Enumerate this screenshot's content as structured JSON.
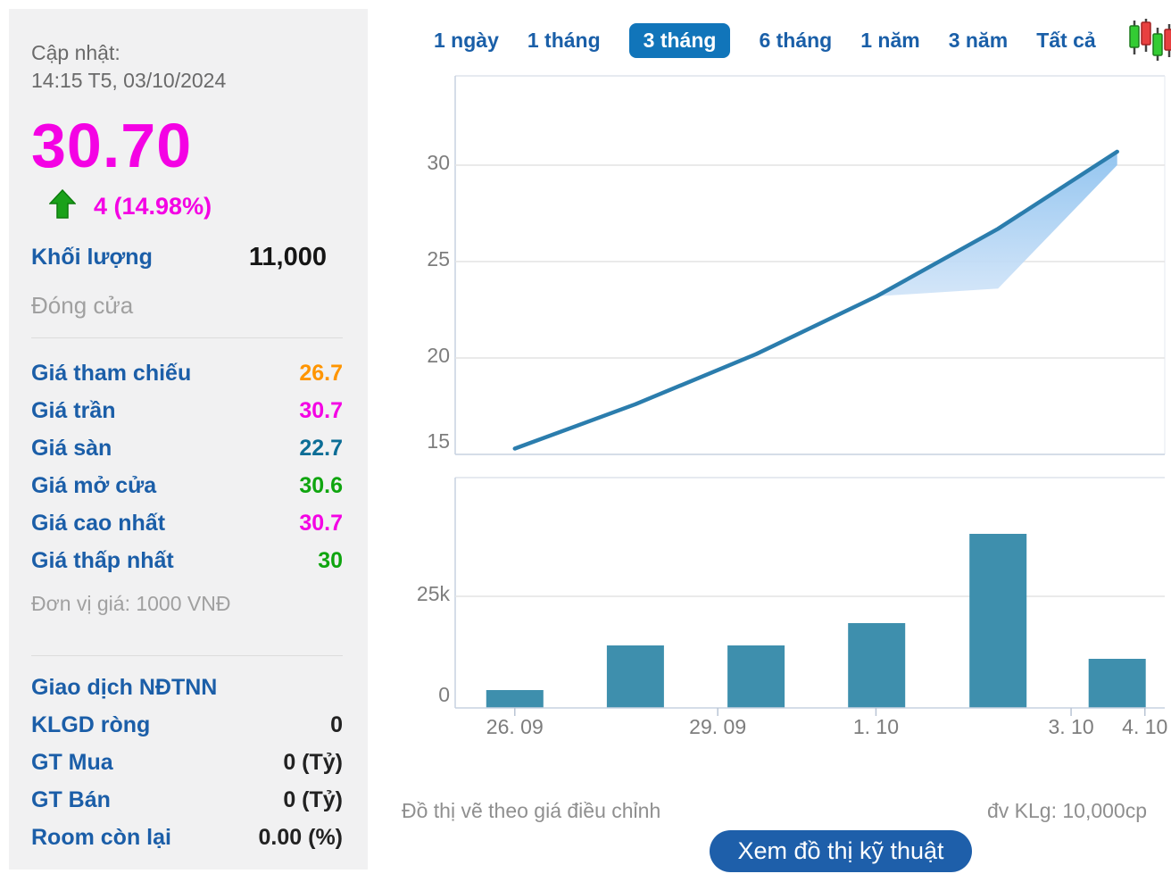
{
  "panel": {
    "updated_label": "Cập nhật:",
    "updated_time": "14:15 T5, 03/10/2024",
    "price": "30.70",
    "change": "4 (14.98%)",
    "volume_label": "Khối lượng",
    "volume_value": "11,000",
    "close_label": "Đóng cửa",
    "price_rows": [
      {
        "label": "Giá tham chiếu",
        "value": "26.7",
        "color": "#ff9500"
      },
      {
        "label": "Giá trần",
        "value": "30.7",
        "color": "#f402e4"
      },
      {
        "label": "Giá sàn",
        "value": "22.7",
        "color": "#0c6d96"
      },
      {
        "label": "Giá mở cửa",
        "value": "30.6",
        "color": "#0fa50f"
      },
      {
        "label": "Giá cao nhất",
        "value": "30.7",
        "color": "#f402e4"
      },
      {
        "label": "Giá thấp nhất",
        "value": "30",
        "color": "#0fa50f"
      }
    ],
    "unit_note": "Đơn vị giá: 1000 VNĐ",
    "foreign_header": "Giao dịch NĐTNN",
    "foreign_rows": [
      {
        "label": "KLGD ròng",
        "value": "0"
      },
      {
        "label": "GT Mua",
        "value": "0 (Tỷ)"
      },
      {
        "label": "GT Bán",
        "value": "0 (Tỷ)"
      },
      {
        "label": "Room còn lại",
        "value": "0.00 (%)"
      }
    ]
  },
  "tabs": [
    {
      "label": "1 ngày",
      "active": false
    },
    {
      "label": "1 tháng",
      "active": false
    },
    {
      "label": "3 tháng",
      "active": true
    },
    {
      "label": "6 tháng",
      "active": false
    },
    {
      "label": "1 năm",
      "active": false
    },
    {
      "label": "3 năm",
      "active": false
    },
    {
      "label": "Tất cả",
      "active": false
    }
  ],
  "chart_data": [
    {
      "type": "area",
      "name": "adjusted-price-3-month",
      "title": "",
      "xlabel": "",
      "ylabel": "price (1000 VND)",
      "ylim": [
        15,
        34.6
      ],
      "grid": true,
      "yticks": [
        {
          "v": 15,
          "label": "15"
        },
        {
          "v": 20,
          "label": "20"
        },
        {
          "v": 25,
          "label": "25"
        },
        {
          "v": 30,
          "label": "30"
        }
      ],
      "x_axis": "fraction of plot width (trading sessions 26.09 - 03.10)",
      "series": [
        {
          "name": "gia-dieu-chinh",
          "points": [
            [
              0.084,
              15.3
            ],
            [
              0.254,
              17.6
            ],
            [
              0.424,
              20.2
            ],
            [
              0.594,
              23.2
            ],
            [
              0.765,
              26.7
            ],
            [
              0.933,
              30.7
            ]
          ]
        },
        {
          "name": "band-lower-bound",
          "points": [
            [
              0.594,
              23.2
            ],
            [
              0.765,
              23.6
            ],
            [
              0.933,
              30.0
            ]
          ]
        }
      ]
    },
    {
      "type": "bar",
      "name": "volume",
      "title": "",
      "ylim": [
        0,
        51600
      ],
      "grid": true,
      "yticks": [
        {
          "v": 0,
          "label": "0"
        },
        {
          "v": 25000,
          "label": "25k"
        }
      ],
      "bars": [
        {
          "t": 0.084,
          "value": 4000
        },
        {
          "t": 0.254,
          "value": 14000
        },
        {
          "t": 0.424,
          "value": 14000
        },
        {
          "t": 0.594,
          "value": 19000
        },
        {
          "t": 0.765,
          "value": 39000
        },
        {
          "t": 0.933,
          "value": 11000
        }
      ],
      "xticks": [
        {
          "t": 0.084,
          "label": "26. 09"
        },
        {
          "t": 0.37,
          "label": "29. 09"
        },
        {
          "t": 0.593,
          "label": "1. 10"
        },
        {
          "t": 0.868,
          "label": "3. 10"
        },
        {
          "t": 0.972,
          "label": "4. 10"
        }
      ]
    }
  ],
  "footer": {
    "note_left": "Đồ thị vẽ theo giá điều chỉnh",
    "note_right": "đv KLg: 10,000cp",
    "button": "Xem đồ thị kỹ thuật"
  },
  "icons": {
    "up_arrow": "up-arrow-icon",
    "candlestick": "candlestick-chart-icon"
  },
  "colors": {
    "magenta": "#f402e4",
    "orange": "#ff9500",
    "green": "#0fa50f",
    "floor_teal": "#0c6d96",
    "label_blue": "#1b5ea8",
    "tab_blue": "#1a5fa8",
    "tab_active_bg": "#1175ba",
    "button_bg": "#1e5faa",
    "line": "#2b7dad",
    "bar": "#3e8fad",
    "band_top": "#8ec2ef",
    "band_bottom": "#cfe3f8",
    "arrow_green": "#1aa11a",
    "grid": "#e4e4e4",
    "axis": "#c7d2e0",
    "panel_bg": "#f1f1f2"
  }
}
